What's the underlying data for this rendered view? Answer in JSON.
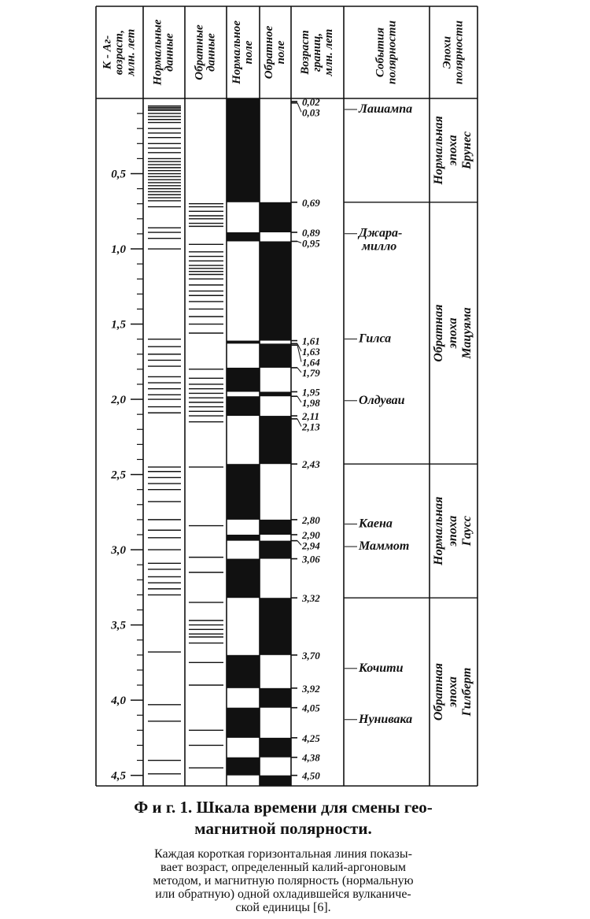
{
  "figure": {
    "headers": [
      [
        "К - Аг-",
        "возраст,",
        "млн. лет"
      ],
      [
        "Нормальные",
        "данные"
      ],
      [
        "Обратные",
        "данные"
      ],
      [
        "Нормальное",
        "поле"
      ],
      [
        "Обратное",
        "поле"
      ],
      [
        "Возраст",
        "границ,",
        "млн. лет"
      ],
      [
        "События",
        "полярности"
      ],
      [
        "Эпохи",
        "полярности"
      ]
    ],
    "age_range": [
      0,
      4.57
    ],
    "age_ticks": [
      {
        "value": 0.5,
        "label": "0,5"
      },
      {
        "value": 1.0,
        "label": "1,0"
      },
      {
        "value": 1.5,
        "label": "1,5"
      },
      {
        "value": 2.0,
        "label": "2,0"
      },
      {
        "value": 2.5,
        "label": "2,5"
      },
      {
        "value": 3.0,
        "label": "3,0"
      },
      {
        "value": 3.5,
        "label": "3,5"
      },
      {
        "value": 4.0,
        "label": "4,0"
      },
      {
        "value": 4.5,
        "label": "4,5"
      }
    ],
    "minor_ticks": [
      0.1,
      0.2,
      0.3,
      0.4,
      0.6,
      0.7,
      0.8,
      0.9,
      1.1,
      1.2,
      1.3,
      1.4,
      1.6,
      1.7,
      1.8,
      1.9,
      2.1,
      2.2,
      2.3,
      2.4,
      2.6,
      2.7,
      2.8,
      2.9,
      3.1,
      3.2,
      3.3,
      3.4,
      3.6,
      3.7,
      3.8,
      3.9,
      4.1,
      4.2,
      4.3,
      4.4
    ],
    "normal_data": [
      0.05,
      0.06,
      0.07,
      0.08,
      0.1,
      0.12,
      0.14,
      0.16,
      0.2,
      0.23,
      0.26,
      0.3,
      0.33,
      0.36,
      0.4,
      0.42,
      0.44,
      0.46,
      0.48,
      0.5,
      0.52,
      0.54,
      0.56,
      0.58,
      0.6,
      0.62,
      0.64,
      0.66,
      0.68,
      0.72,
      0.86,
      0.89,
      0.93,
      1.0,
      1.6,
      1.65,
      1.7,
      1.74,
      1.78,
      1.85,
      1.89,
      1.93,
      1.97,
      2.0,
      2.05,
      2.09,
      2.45,
      2.48,
      2.52,
      2.56,
      2.6,
      2.68,
      2.8,
      2.87,
      2.92,
      3.0,
      3.09,
      3.13,
      3.18,
      3.22,
      3.26,
      3.3,
      3.68,
      4.03,
      4.14,
      4.4,
      4.49
    ],
    "reverse_data": [
      0.7,
      0.72,
      0.75,
      0.78,
      0.8,
      0.83,
      0.85,
      0.97,
      1.02,
      1.05,
      1.08,
      1.11,
      1.13,
      1.15,
      1.17,
      1.2,
      1.24,
      1.28,
      1.31,
      1.35,
      1.4,
      1.45,
      1.5,
      1.56,
      1.8,
      1.86,
      1.9,
      1.93,
      1.96,
      1.99,
      2.02,
      2.05,
      2.08,
      2.11,
      2.15,
      2.45,
      2.84,
      3.05,
      3.15,
      3.35,
      3.47,
      3.5,
      3.53,
      3.56,
      3.58,
      3.62,
      3.75,
      3.9,
      4.2,
      4.3,
      4.45
    ],
    "normal_intervals": [
      [
        0,
        0.69
      ],
      [
        0.89,
        0.95
      ],
      [
        1.61,
        1.63
      ],
      [
        1.79,
        1.95
      ],
      [
        1.98,
        2.11
      ],
      [
        2.43,
        2.8
      ],
      [
        2.9,
        2.94
      ],
      [
        3.06,
        3.32
      ],
      [
        3.7,
        3.92
      ],
      [
        4.05,
        4.25
      ],
      [
        4.38,
        4.5
      ]
    ],
    "reverse_intervals": [
      [
        0.69,
        0.89
      ],
      [
        0.95,
        1.61
      ],
      [
        1.63,
        1.79
      ],
      [
        1.95,
        1.98
      ],
      [
        2.11,
        2.43
      ],
      [
        2.8,
        2.9
      ],
      [
        2.94,
        3.06
      ],
      [
        3.32,
        3.7
      ],
      [
        3.92,
        4.05
      ],
      [
        4.25,
        4.38
      ],
      [
        4.5,
        4.57
      ]
    ],
    "boundaries": [
      0.02,
      0.03,
      0.69,
      0.89,
      0.95,
      1.61,
      1.63,
      1.64,
      1.79,
      1.95,
      1.98,
      2.11,
      2.13,
      2.43,
      2.8,
      2.9,
      2.94,
      3.06,
      3.32,
      3.7,
      3.92,
      4.05,
      4.25,
      4.38,
      4.5
    ],
    "boundary_labels": [
      "0,02",
      "0,03",
      "0,69",
      "0,89",
      "0,95",
      "1,61",
      "1,63",
      "1,64",
      "1,79",
      "1,95",
      "1,98",
      "2,11",
      "2,13",
      "2,43",
      "2,80",
      "2,90",
      "2,94",
      "3,06",
      "3,32",
      "3,70",
      "3,92",
      "4,05",
      "4,25",
      "4,38",
      "4,50"
    ],
    "events": [
      {
        "name": [
          "Лашампа"
        ],
        "start": 0.02,
        "end": 0.03
      },
      {
        "name": [
          "Джара-",
          "милло"
        ],
        "start": 0.89,
        "end": 0.95
      },
      {
        "name": [
          "Гилса"
        ],
        "start": 1.61,
        "end": 1.63
      },
      {
        "name": [
          "Олдуваи"
        ],
        "start": 1.95,
        "end": 2.11
      },
      {
        "name": [
          "Каена"
        ],
        "start": 2.8,
        "end": 2.9
      },
      {
        "name": [
          "Маммот"
        ],
        "start": 2.94,
        "end": 3.06
      },
      {
        "name": [
          "Кочити"
        ],
        "start": 3.7,
        "end": 3.92
      },
      {
        "name": [
          "Нунивака"
        ],
        "start": 4.05,
        "end": 4.25
      }
    ],
    "epochs": [
      {
        "name": [
          "Нормальная",
          "эпоха",
          "Брунес"
        ],
        "start": 0,
        "end": 0.69
      },
      {
        "name": [
          "Обратная",
          "эпоха",
          "Мацуяма"
        ],
        "start": 0.69,
        "end": 2.43
      },
      {
        "name": [
          "Нормальная",
          "эпоха",
          "Гаусс"
        ],
        "start": 2.43,
        "end": 3.32
      },
      {
        "name": [
          "Обратная",
          "эпоха",
          "Гилберт"
        ],
        "start": 3.32,
        "end": 4.57
      }
    ]
  },
  "caption": {
    "title": [
      "Ф и г. 1. Шкала времени для смены гео-",
      "магнитной полярности."
    ],
    "body": [
      "Каждая короткая горизонтальная линия показы-",
      "вает возраст, определенный калий-аргоновым",
      "методом, и магнитную полярность (нормальную",
      "или обратную) одной охладившейся вулканиче-",
      "ской единицы [6]."
    ]
  }
}
